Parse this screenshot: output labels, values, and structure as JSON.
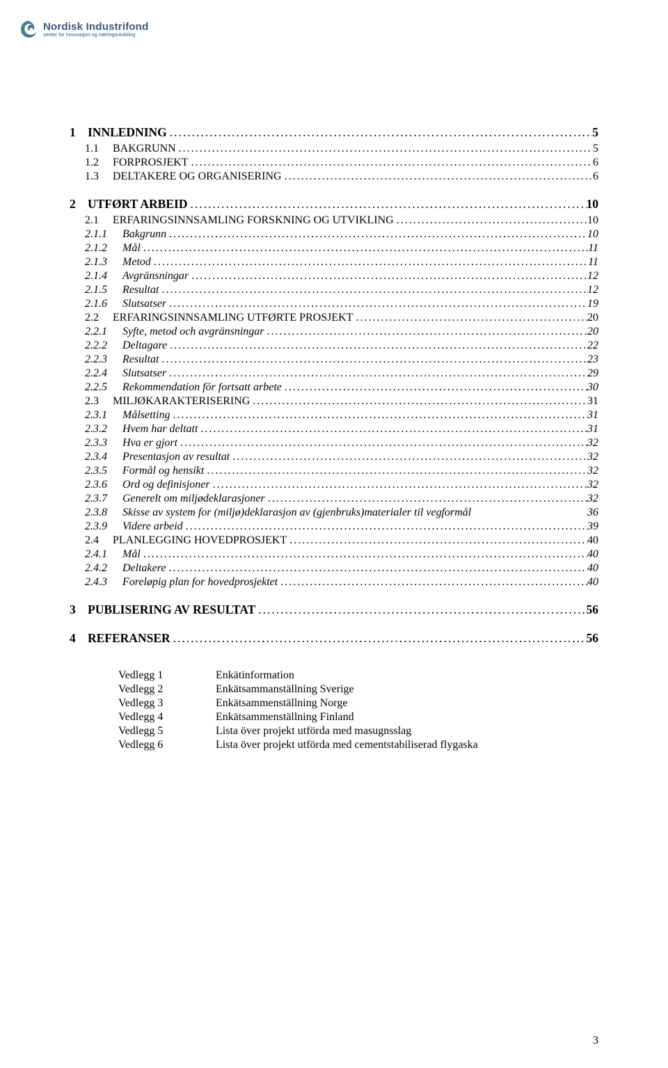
{
  "logo": {
    "title": "Nordisk Industrifond",
    "tagline": "senter for innovasjon og næringsutvikling",
    "swirl_color": "#4a7a96",
    "text_color": "#3a5a7a"
  },
  "colors": {
    "background": "#ffffff",
    "text": "#000000"
  },
  "page_number": "3",
  "toc": [
    {
      "level": 1,
      "num": "1",
      "title": "INNLEDNING",
      "page": "5"
    },
    {
      "level": 2,
      "num": "1.1",
      "title": "BAKGRUNN",
      "page": "5"
    },
    {
      "level": 2,
      "num": "1.2",
      "title": "FORPROSJEKT",
      "page": "6"
    },
    {
      "level": 2,
      "num": "1.3",
      "title": "DELTAKERE OG ORGANISERING",
      "page": "6"
    },
    {
      "level": 1,
      "num": "2",
      "title": "UTFØRT ARBEID",
      "page": "10"
    },
    {
      "level": 2,
      "num": "2.1",
      "title": "ERFARINGSINNSAMLING FORSKNING OG UTVIKLING",
      "page": "10"
    },
    {
      "level": 3,
      "num": "2.1.1",
      "title": "Bakgrunn",
      "page": "10"
    },
    {
      "level": 3,
      "num": "2.1.2",
      "title": "Mål",
      "page": "11"
    },
    {
      "level": 3,
      "num": "2.1.3",
      "title": "Metod",
      "page": "11"
    },
    {
      "level": 3,
      "num": "2.1.4",
      "title": "Avgränsningar",
      "page": "12"
    },
    {
      "level": 3,
      "num": "2.1.5",
      "title": "Resultat",
      "page": "12"
    },
    {
      "level": 3,
      "num": "2.1.6",
      "title": "Slutsatser",
      "page": "19"
    },
    {
      "level": 2,
      "num": "2.2",
      "title": "ERFARINGSINNSAMLING UTFØRTE PROSJEKT",
      "page": "20"
    },
    {
      "level": 3,
      "num": "2.2.1",
      "title": "Syfte, metod och avgränsningar",
      "page": "20"
    },
    {
      "level": 3,
      "num": "2.2.2",
      "title": "Deltagare",
      "page": "22"
    },
    {
      "level": 3,
      "num": "2.2.3",
      "title": "Resultat",
      "page": "23"
    },
    {
      "level": 3,
      "num": "2.2.4",
      "title": "Slutsatser",
      "page": "29"
    },
    {
      "level": 3,
      "num": "2.2.5",
      "title": "Rekommendation för fortsatt arbete",
      "page": "30"
    },
    {
      "level": 2,
      "num": "2.3",
      "title": "MILJØKARAKTERISERING",
      "page": "31"
    },
    {
      "level": 3,
      "num": "2.3.1",
      "title": "Målsetting",
      "page": "31"
    },
    {
      "level": 3,
      "num": "2.3.2",
      "title": "Hvem har deltatt",
      "page": "31"
    },
    {
      "level": 3,
      "num": "2.3.3",
      "title": "Hva er gjort",
      "page": "32"
    },
    {
      "level": 3,
      "num": "2.3.4",
      "title": "Presentasjon av resultat",
      "page": "32"
    },
    {
      "level": 3,
      "num": "2.3.5",
      "title": "Formål og hensikt",
      "page": "32"
    },
    {
      "level": 3,
      "num": "2.3.6",
      "title": "Ord og definisjoner",
      "page": "32"
    },
    {
      "level": 3,
      "num": "2.3.7",
      "title": "Generelt om miljødeklarasjoner",
      "page": "32"
    },
    {
      "level": 3,
      "num": "2.3.8",
      "title": "Skisse av system for (miljø)deklarasjon av (gjenbruks)materialer til vegformål",
      "page": "36",
      "no_leader": true
    },
    {
      "level": 3,
      "num": "2.3.9",
      "title": "Videre arbeid",
      "page": "39"
    },
    {
      "level": 2,
      "num": "2.4",
      "title": "PLANLEGGING HOVEDPROSJEKT",
      "page": "40"
    },
    {
      "level": 3,
      "num": "2.4.1",
      "title": "Mål",
      "page": "40"
    },
    {
      "level": 3,
      "num": "2.4.2",
      "title": "Deltakere",
      "page": "40"
    },
    {
      "level": 3,
      "num": "2.4.3",
      "title": "Foreløpig plan for hovedprosjektet",
      "page": "40"
    },
    {
      "level": 1,
      "num": "3",
      "title": "PUBLISERING AV RESULTAT",
      "page": "56"
    },
    {
      "level": 1,
      "num": "4",
      "title": "REFERANSER",
      "page": "56"
    }
  ],
  "appendix": [
    {
      "label": "Vedlegg 1",
      "text": "Enkätinformation"
    },
    {
      "label": "Vedlegg 2",
      "text": "Enkätsammanställning Sverige"
    },
    {
      "label": "Vedlegg 3",
      "text": "Enkätsammenställning Norge"
    },
    {
      "label": "Vedlegg 4",
      "text": "Enkätsammenställning Finland"
    },
    {
      "label": "Vedlegg 5",
      "text": "Lista över projekt utförda med masugnsslag"
    },
    {
      "label": "Vedlegg 6",
      "text": "Lista över projekt utförda med cementstabiliserad flygaska"
    }
  ]
}
